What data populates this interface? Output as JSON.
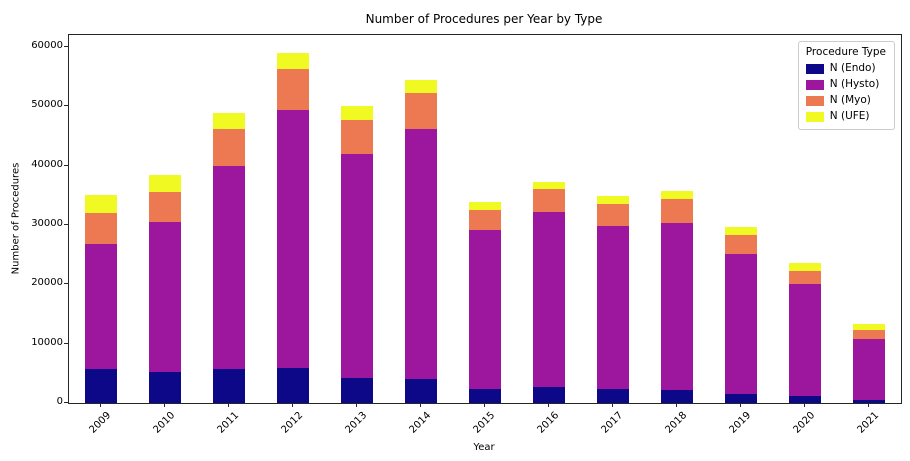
{
  "chart_data": {
    "type": "bar",
    "stacked": true,
    "title": "Number of Procedures per Year by Type",
    "xlabel": "Year",
    "ylabel": "Number of Procedures",
    "categories": [
      "2009",
      "2010",
      "2011",
      "2012",
      "2013",
      "2014",
      "2015",
      "2016",
      "2017",
      "2018",
      "2019",
      "2020",
      "2021"
    ],
    "series": [
      {
        "name": "N (Endo)",
        "color": "#0d0887",
        "values": [
          5700,
          5300,
          5800,
          5900,
          4200,
          4100,
          2300,
          2700,
          2400,
          2200,
          1600,
          1100,
          500
        ]
      },
      {
        "name": "N (Hysto)",
        "color": "#9c179e",
        "values": [
          21100,
          25200,
          34200,
          43500,
          37700,
          42100,
          26800,
          29400,
          27500,
          28200,
          23500,
          18900,
          10300
        ]
      },
      {
        "name": "N (Myo)",
        "color": "#ed7953",
        "values": [
          5200,
          5100,
          6200,
          6900,
          5800,
          6000,
          3500,
          3900,
          3600,
          3900,
          3200,
          2300,
          1500
        ]
      },
      {
        "name": "N (UFE)",
        "color": "#f0f921",
        "values": [
          3000,
          2800,
          2700,
          2700,
          2300,
          2300,
          1200,
          1200,
          1400,
          1500,
          1300,
          1300,
          1000
        ]
      }
    ],
    "legend": {
      "title": "Procedure Type",
      "position": "upper right"
    },
    "ylim": [
      0,
      62000
    ],
    "yticks": [
      0,
      10000,
      20000,
      30000,
      40000,
      50000,
      60000
    ],
    "grid": false,
    "axis_color": "#262626"
  }
}
